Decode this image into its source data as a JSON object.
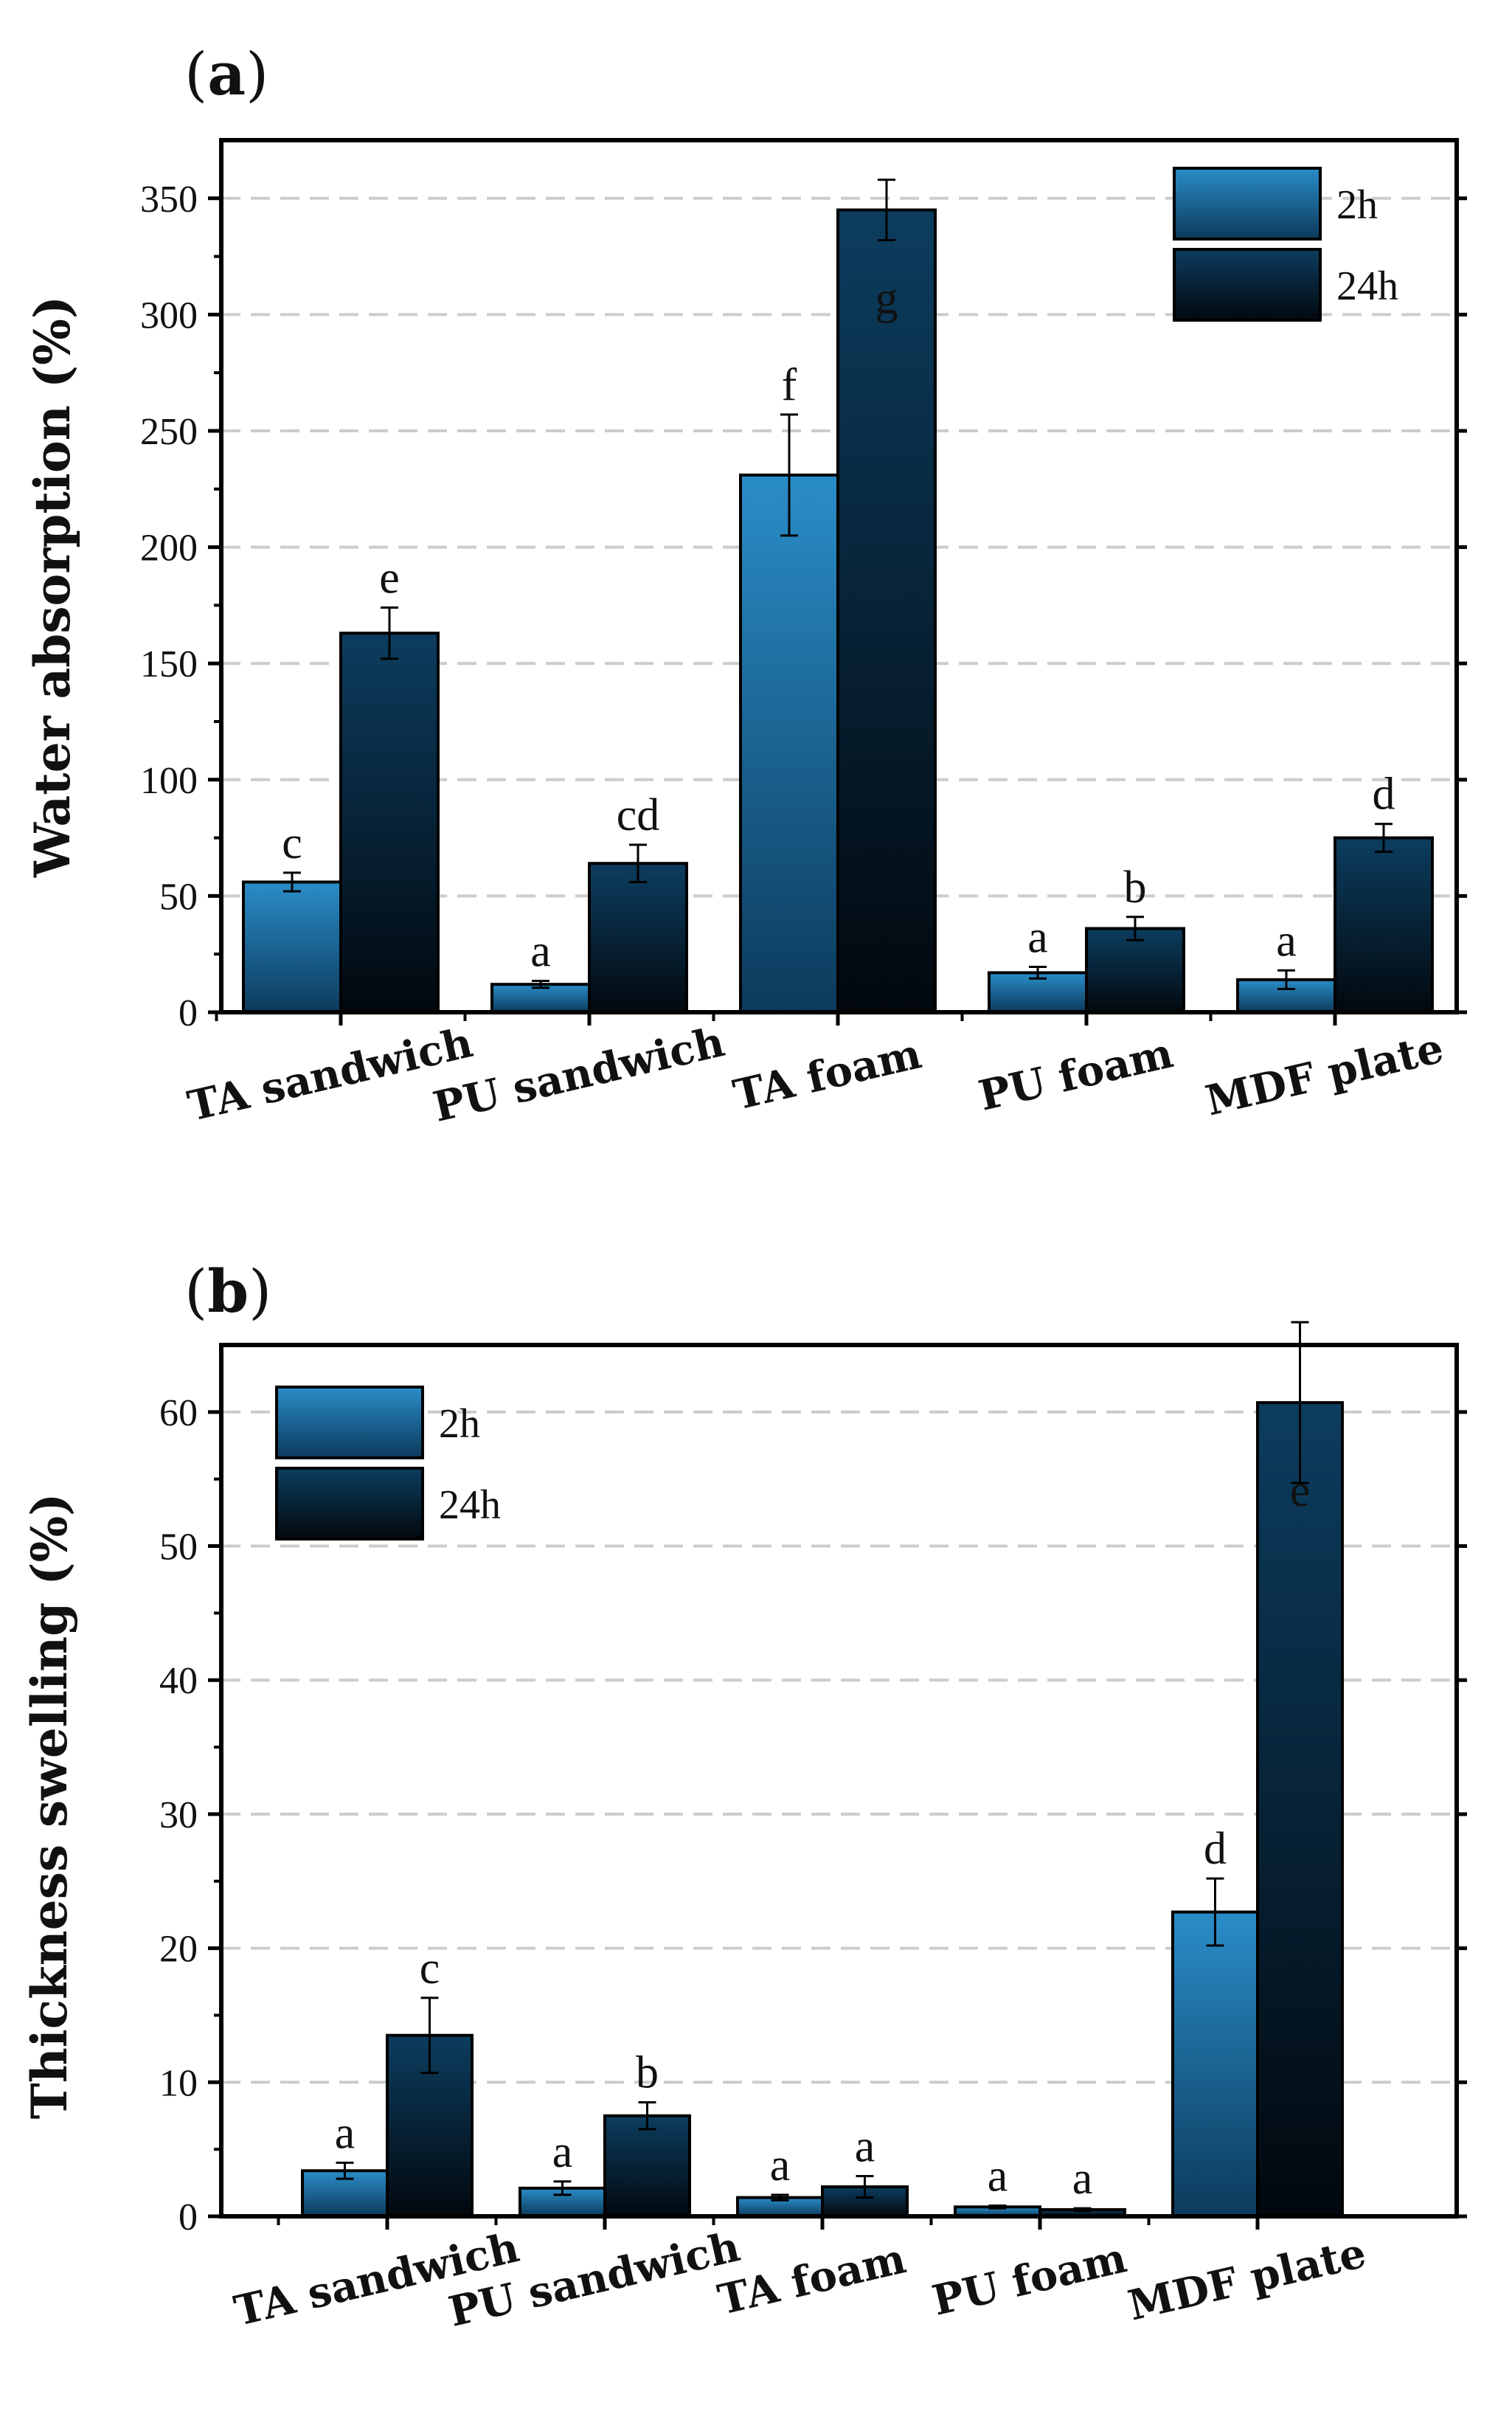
{
  "colors": {
    "series_2h_top": "#2a8dc8",
    "series_2h_bottom": "#0c3a5c",
    "series_24h_top": "#0c3d5f",
    "series_24h_bottom": "#02080e",
    "grid": "#cccccc",
    "axis": "#000000"
  },
  "chart_data": [
    {
      "panel_label": "(a)",
      "panel_letter": "a",
      "type": "bar",
      "ylabel": "Water absorption (%)",
      "xlabel": "",
      "ylim": [
        0,
        375
      ],
      "yticks": [
        0,
        50,
        100,
        150,
        200,
        250,
        300,
        350
      ],
      "ytick_labels": [
        "0",
        "50",
        "100",
        "150",
        "200",
        "250",
        "300",
        "350"
      ],
      "grid": true,
      "legend_position": "top-right",
      "categories": [
        "TA sandwich",
        "PU sandwich",
        "TA foam",
        "PU foam",
        "MDF plate"
      ],
      "series": [
        {
          "name": "2h",
          "values": [
            56,
            12,
            231,
            17,
            14
          ],
          "errors": [
            4,
            1.5,
            26,
            2.5,
            4
          ],
          "letters": [
            "c",
            "a",
            "f",
            "a",
            "a"
          ]
        },
        {
          "name": "24h",
          "values": [
            163,
            64,
            345,
            36,
            75
          ],
          "errors": [
            11,
            8,
            13,
            5,
            6
          ],
          "letters": [
            "e",
            "cd",
            "g",
            "b",
            "d"
          ]
        }
      ]
    },
    {
      "panel_label": "(b)",
      "panel_letter": "b",
      "type": "bar",
      "ylabel": "Thickness swelling (%)",
      "xlabel": "",
      "ylim": [
        0,
        65
      ],
      "yticks": [
        0,
        10,
        20,
        30,
        40,
        50,
        60
      ],
      "ytick_labels": [
        "0",
        "10",
        "20",
        "30",
        "40",
        "50",
        "60"
      ],
      "grid": true,
      "legend_position": "top-left",
      "categories": [
        "TA sandwich",
        "PU sandwich",
        "TA foam",
        "PU foam",
        "MDF plate"
      ],
      "series": [
        {
          "name": "2h",
          "values": [
            3.4,
            2.1,
            1.4,
            0.7,
            22.7
          ],
          "errors": [
            0.6,
            0.5,
            0.2,
            0.1,
            2.5
          ],
          "letters": [
            "a",
            "a",
            "a",
            "a",
            "d"
          ]
        },
        {
          "name": "24h",
          "values": [
            13.5,
            7.5,
            2.2,
            0.5,
            60.7
          ],
          "errors": [
            2.8,
            1.0,
            0.8,
            0.1,
            6.0
          ],
          "letters": [
            "c",
            "b",
            "a",
            "a",
            "e"
          ]
        }
      ]
    }
  ]
}
